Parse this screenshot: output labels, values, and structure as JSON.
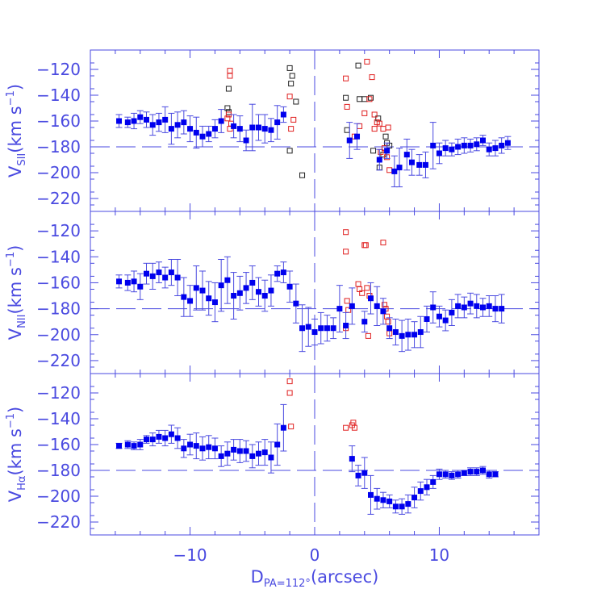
{
  "chart_data": {
    "type": "scatter",
    "colors": {
      "axis": "#4a4ae0",
      "main": "#0000ee",
      "red": "#e02020",
      "black": "#202020"
    },
    "x_axis": {
      "range": [
        -18,
        18
      ],
      "ticks": [
        -10,
        0,
        10
      ],
      "tick_labels": [
        "−10",
        "0",
        "10"
      ],
      "label_main": "D",
      "label_sub": "PA=112°",
      "label_rest": "(arcsec)"
    },
    "y_range": [
      -230,
      -105
    ],
    "y_ticks": [
      -120,
      -140,
      -160,
      -180,
      -200,
      -220
    ],
    "y_tick_labels": [
      "−120",
      "−140",
      "−160",
      "−180",
      "−200",
      "−220"
    ],
    "reference_lines": {
      "y": -180,
      "x": 0
    },
    "panels": [
      {
        "ylabel_main": "V",
        "ylabel_sub": "SII",
        "ylabel_rest": "(km s",
        "ylabel_exp": "−1",
        "ylabel_close": ")",
        "main_series": [
          [
            -15.7,
            -160,
            5
          ],
          [
            -15.0,
            -161,
            4
          ],
          [
            -14.5,
            -160,
            6
          ],
          [
            -14.0,
            -157,
            5
          ],
          [
            -13.5,
            -159,
            6
          ],
          [
            -13.0,
            -163,
            8
          ],
          [
            -12.5,
            -161,
            7
          ],
          [
            -12.0,
            -159,
            10
          ],
          [
            -11.5,
            -166,
            12
          ],
          [
            -11.0,
            -163,
            10
          ],
          [
            -10.5,
            -161,
            9
          ],
          [
            -10.0,
            -166,
            10
          ],
          [
            -9.5,
            -169,
            12
          ],
          [
            -9.0,
            -172,
            8
          ],
          [
            -8.5,
            -170,
            6
          ],
          [
            -8.0,
            -166,
            7
          ],
          [
            -7.5,
            -160,
            9
          ],
          [
            -6.5,
            -164,
            9
          ],
          [
            -6.0,
            -166,
            10
          ],
          [
            -5.5,
            -175,
            8
          ],
          [
            -5.0,
            -165,
            18
          ],
          [
            -4.5,
            -165,
            10
          ],
          [
            -4.0,
            -166,
            11
          ],
          [
            -3.5,
            -167,
            9
          ],
          [
            -3.0,
            -161,
            13
          ],
          [
            -2.5,
            -155,
            6
          ],
          [
            2.8,
            -175,
            14
          ],
          [
            3.4,
            -172,
            10
          ],
          [
            5.2,
            -190,
            8
          ],
          [
            5.8,
            -183,
            6
          ],
          [
            6.4,
            -199,
            12
          ],
          [
            6.8,
            -196,
            15
          ],
          [
            7.4,
            -186,
            12
          ],
          [
            7.8,
            -192,
            10
          ],
          [
            8.4,
            -194,
            8
          ],
          [
            8.9,
            -194,
            10
          ],
          [
            9.5,
            -179,
            18
          ],
          [
            10.0,
            -185,
            8
          ],
          [
            10.5,
            -181,
            6
          ],
          [
            11.0,
            -182,
            5
          ],
          [
            11.5,
            -180,
            6
          ],
          [
            12.0,
            -179,
            6
          ],
          [
            12.5,
            -179,
            5
          ],
          [
            13.0,
            -178,
            5
          ],
          [
            13.5,
            -175,
            4
          ],
          [
            14.0,
            -182,
            5
          ],
          [
            14.5,
            -181,
            6
          ],
          [
            15.0,
            -179,
            6
          ],
          [
            15.5,
            -177,
            5
          ]
        ],
        "red_series": [
          [
            -6.8,
            -121
          ],
          [
            -6.8,
            -125
          ],
          [
            -6.9,
            -155
          ],
          [
            -7.0,
            -158
          ],
          [
            -6.7,
            -162
          ],
          [
            -6.8,
            -166
          ],
          [
            -2.0,
            -141
          ],
          [
            -1.9,
            -166
          ],
          [
            -1.7,
            -159
          ],
          [
            2.5,
            -127
          ],
          [
            2.6,
            -149
          ],
          [
            3.2,
            -172
          ],
          [
            3.6,
            -164
          ],
          [
            4.0,
            -154
          ],
          [
            4.2,
            -114
          ],
          [
            4.4,
            -143
          ],
          [
            4.6,
            -126
          ],
          [
            4.8,
            -155
          ],
          [
            4.8,
            -166
          ],
          [
            5.0,
            -161
          ],
          [
            5.2,
            -162
          ],
          [
            5.3,
            -184
          ],
          [
            5.5,
            -166
          ],
          [
            5.6,
            -181
          ],
          [
            5.8,
            -188
          ],
          [
            5.9,
            -165
          ],
          [
            6.0,
            -198
          ]
        ],
        "black_series": [
          [
            -6.9,
            -135
          ],
          [
            -7.0,
            -150
          ],
          [
            -6.9,
            -153
          ],
          [
            -2.0,
            -119
          ],
          [
            -1.8,
            -125
          ],
          [
            -1.9,
            -131
          ],
          [
            -1.5,
            -145
          ],
          [
            -1.0,
            -202
          ],
          [
            -2.0,
            -183
          ],
          [
            2.5,
            -142
          ],
          [
            2.6,
            -167
          ],
          [
            3.5,
            -117
          ],
          [
            3.6,
            -143
          ],
          [
            4.0,
            -143
          ],
          [
            4.5,
            -142
          ],
          [
            4.7,
            -183
          ],
          [
            5.1,
            -158
          ],
          [
            5.2,
            -196
          ],
          [
            5.5,
            -186
          ],
          [
            5.7,
            -172
          ],
          [
            5.8,
            -177
          ],
          [
            6.0,
            -179
          ]
        ]
      },
      {
        "ylabel_main": "V",
        "ylabel_sub": "NII",
        "ylabel_rest": "(km s",
        "ylabel_exp": "−1",
        "ylabel_close": ")",
        "main_series": [
          [
            -15.7,
            -159,
            5
          ],
          [
            -15.0,
            -160,
            6
          ],
          [
            -14.5,
            -159,
            8
          ],
          [
            -14.0,
            -163,
            10
          ],
          [
            -13.5,
            -153,
            8
          ],
          [
            -13.0,
            -155,
            10
          ],
          [
            -12.5,
            -152,
            8
          ],
          [
            -12.0,
            -156,
            8
          ],
          [
            -11.5,
            -152,
            10
          ],
          [
            -11.0,
            -156,
            14
          ],
          [
            -10.5,
            -171,
            15
          ],
          [
            -10.0,
            -174,
            12
          ],
          [
            -9.5,
            -164,
            17
          ],
          [
            -9.0,
            -166,
            15
          ],
          [
            -8.5,
            -172,
            13
          ],
          [
            -8.0,
            -175,
            15
          ],
          [
            -7.5,
            -162,
            20
          ],
          [
            -7.0,
            -158,
            18
          ],
          [
            -6.5,
            -170,
            18
          ],
          [
            -6.0,
            -168,
            13
          ],
          [
            -5.5,
            -164,
            12
          ],
          [
            -5.0,
            -160,
            13
          ],
          [
            -4.5,
            -167,
            11
          ],
          [
            -4.0,
            -170,
            12
          ],
          [
            -3.5,
            -166,
            12
          ],
          [
            -3.0,
            -153,
            6
          ],
          [
            -2.5,
            -152,
            8
          ],
          [
            -2.0,
            -163,
            12
          ],
          [
            -1.5,
            -176,
            15
          ],
          [
            -1.0,
            -195,
            18
          ],
          [
            -0.5,
            -194,
            15
          ],
          [
            0.0,
            -198,
            10
          ],
          [
            0.5,
            -195,
            12
          ],
          [
            1.0,
            -195,
            10
          ],
          [
            1.5,
            -195,
            8
          ],
          [
            2.0,
            -180,
            18
          ],
          [
            2.5,
            -193,
            10
          ],
          [
            3.0,
            -178,
            14
          ],
          [
            4.0,
            -190,
            8
          ],
          [
            4.5,
            -172,
            12
          ],
          [
            5.0,
            -178,
            15
          ],
          [
            5.5,
            -182,
            10
          ],
          [
            6.0,
            -195,
            8
          ],
          [
            6.5,
            -198,
            10
          ],
          [
            7.0,
            -201,
            12
          ],
          [
            7.5,
            -200,
            12
          ],
          [
            8.0,
            -200,
            10
          ],
          [
            8.5,
            -198,
            12
          ],
          [
            9.0,
            -188,
            10
          ],
          [
            9.5,
            -179,
            12
          ],
          [
            10.0,
            -186,
            8
          ],
          [
            10.5,
            -189,
            8
          ],
          [
            11.0,
            -183,
            10
          ],
          [
            11.5,
            -178,
            9
          ],
          [
            12.0,
            -179,
            8
          ],
          [
            12.5,
            -176,
            8
          ],
          [
            13.0,
            -178,
            9
          ],
          [
            13.5,
            -179,
            7
          ],
          [
            14.0,
            -178,
            8
          ],
          [
            14.5,
            -180,
            10
          ],
          [
            15.0,
            -180,
            11
          ]
        ],
        "red_series": [
          [
            2.5,
            -121
          ],
          [
            2.5,
            -136
          ],
          [
            2.6,
            -174
          ],
          [
            2.7,
            -181
          ],
          [
            2.5,
            -195
          ],
          [
            3.5,
            -161
          ],
          [
            3.6,
            -165
          ],
          [
            3.8,
            -168
          ],
          [
            4.0,
            -131
          ],
          [
            4.1,
            -131
          ],
          [
            4.2,
            -164
          ],
          [
            4.3,
            -201
          ],
          [
            4.4,
            -170
          ],
          [
            5.5,
            -129
          ],
          [
            5.6,
            -177
          ],
          [
            5.7,
            -180
          ],
          [
            5.8,
            -186
          ],
          [
            5.9,
            -190
          ],
          [
            6.0,
            -199
          ]
        ],
        "black_series": []
      },
      {
        "ylabel_main": "V",
        "ylabel_sub": "Hα",
        "ylabel_rest": "(km s",
        "ylabel_exp": "−1",
        "ylabel_close": ")",
        "main_series": [
          [
            -15.7,
            -161,
            2
          ],
          [
            -15.0,
            -160,
            3
          ],
          [
            -14.5,
            -161,
            3
          ],
          [
            -14.0,
            -160,
            4
          ],
          [
            -13.5,
            -156,
            3
          ],
          [
            -13.0,
            -156,
            5
          ],
          [
            -12.5,
            -154,
            5
          ],
          [
            -12.0,
            -155,
            6
          ],
          [
            -11.5,
            -152,
            7
          ],
          [
            -11.0,
            -155,
            8
          ],
          [
            -10.5,
            -163,
            7
          ],
          [
            -10.0,
            -160,
            8
          ],
          [
            -9.5,
            -161,
            10
          ],
          [
            -9.0,
            -163,
            9
          ],
          [
            -8.5,
            -162,
            9
          ],
          [
            -8.0,
            -163,
            8
          ],
          [
            -7.5,
            -169,
            8
          ],
          [
            -7.0,
            -167,
            9
          ],
          [
            -6.5,
            -164,
            8
          ],
          [
            -6.0,
            -165,
            9
          ],
          [
            -5.5,
            -165,
            8
          ],
          [
            -5.0,
            -169,
            9
          ],
          [
            -4.5,
            -167,
            9
          ],
          [
            -4.0,
            -166,
            10
          ],
          [
            -3.5,
            -170,
            12
          ],
          [
            -3.0,
            -160,
            16
          ],
          [
            -2.5,
            -147,
            18
          ],
          [
            3.0,
            -171,
            10
          ],
          [
            3.5,
            -184,
            8
          ],
          [
            4.0,
            -182,
            12
          ],
          [
            4.5,
            -199,
            15
          ],
          [
            5.0,
            -202,
            8
          ],
          [
            5.5,
            -203,
            6
          ],
          [
            6.0,
            -204,
            5
          ],
          [
            6.5,
            -208,
            5
          ],
          [
            7.0,
            -208,
            6
          ],
          [
            7.5,
            -206,
            7
          ],
          [
            8.0,
            -201,
            8
          ],
          [
            8.5,
            -196,
            7
          ],
          [
            9.0,
            -193,
            6
          ],
          [
            9.5,
            -189,
            5
          ],
          [
            10.0,
            -183,
            4
          ],
          [
            10.5,
            -183,
            3
          ],
          [
            11.0,
            -184,
            3
          ],
          [
            11.5,
            -183,
            3
          ],
          [
            12.0,
            -182,
            2
          ],
          [
            12.5,
            -181,
            3
          ],
          [
            13.0,
            -181,
            3
          ],
          [
            13.5,
            -180,
            3
          ],
          [
            14.0,
            -183,
            3
          ],
          [
            14.5,
            -183,
            2
          ]
        ],
        "red_series": [
          [
            -2.0,
            -111
          ],
          [
            -2.0,
            -120
          ],
          [
            -1.9,
            -146
          ],
          [
            2.5,
            -147
          ],
          [
            3.0,
            -145
          ],
          [
            3.1,
            -143
          ],
          [
            3.2,
            -147
          ]
        ],
        "black_series": []
      }
    ]
  }
}
